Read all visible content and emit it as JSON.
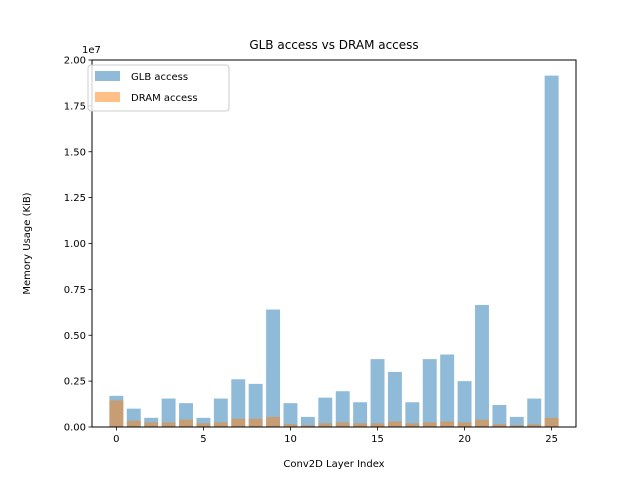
{
  "chart_data": {
    "type": "bar",
    "title": "GLB access vs DRAM access",
    "xlabel": "Conv2D Layer Index",
    "ylabel": "Memory Usage (KiB)",
    "y_offset_text": "1e7",
    "xlim": [
      -1.4,
      26.4
    ],
    "ylim": [
      0,
      20000000
    ],
    "x_ticks": [
      0,
      5,
      10,
      15,
      20,
      25
    ],
    "y_ticks": [
      0,
      2500000,
      5000000,
      7500000,
      10000000,
      12500000,
      15000000,
      17500000,
      20000000
    ],
    "y_tick_labels": [
      "0.00",
      "0.25",
      "0.50",
      "0.75",
      "1.00",
      "1.25",
      "1.50",
      "1.75",
      "2.00"
    ],
    "grid": false,
    "legend_position": "top-left",
    "categories": [
      0,
      1,
      2,
      3,
      4,
      5,
      6,
      7,
      8,
      9,
      10,
      11,
      12,
      13,
      14,
      15,
      16,
      17,
      18,
      19,
      20,
      21,
      22,
      23,
      24,
      25
    ],
    "series": [
      {
        "name": "GLB access",
        "color": "#1f77b4",
        "alpha": 0.5,
        "values": [
          1700000,
          1000000,
          500000,
          1550000,
          1300000,
          500000,
          1550000,
          2600000,
          2350000,
          6400000,
          1300000,
          550000,
          1600000,
          1950000,
          1350000,
          3700000,
          3000000,
          1350000,
          3700000,
          3950000,
          2500000,
          6650000,
          1200000,
          550000,
          1550000,
          19150000
        ]
      },
      {
        "name": "DRAM access",
        "color": "#ff7f0e",
        "alpha": 0.5,
        "values": [
          1450000,
          350000,
          250000,
          250000,
          400000,
          200000,
          250000,
          450000,
          450000,
          550000,
          150000,
          100000,
          200000,
          250000,
          200000,
          200000,
          300000,
          200000,
          250000,
          300000,
          250000,
          400000,
          150000,
          100000,
          150000,
          500000
        ]
      }
    ]
  }
}
